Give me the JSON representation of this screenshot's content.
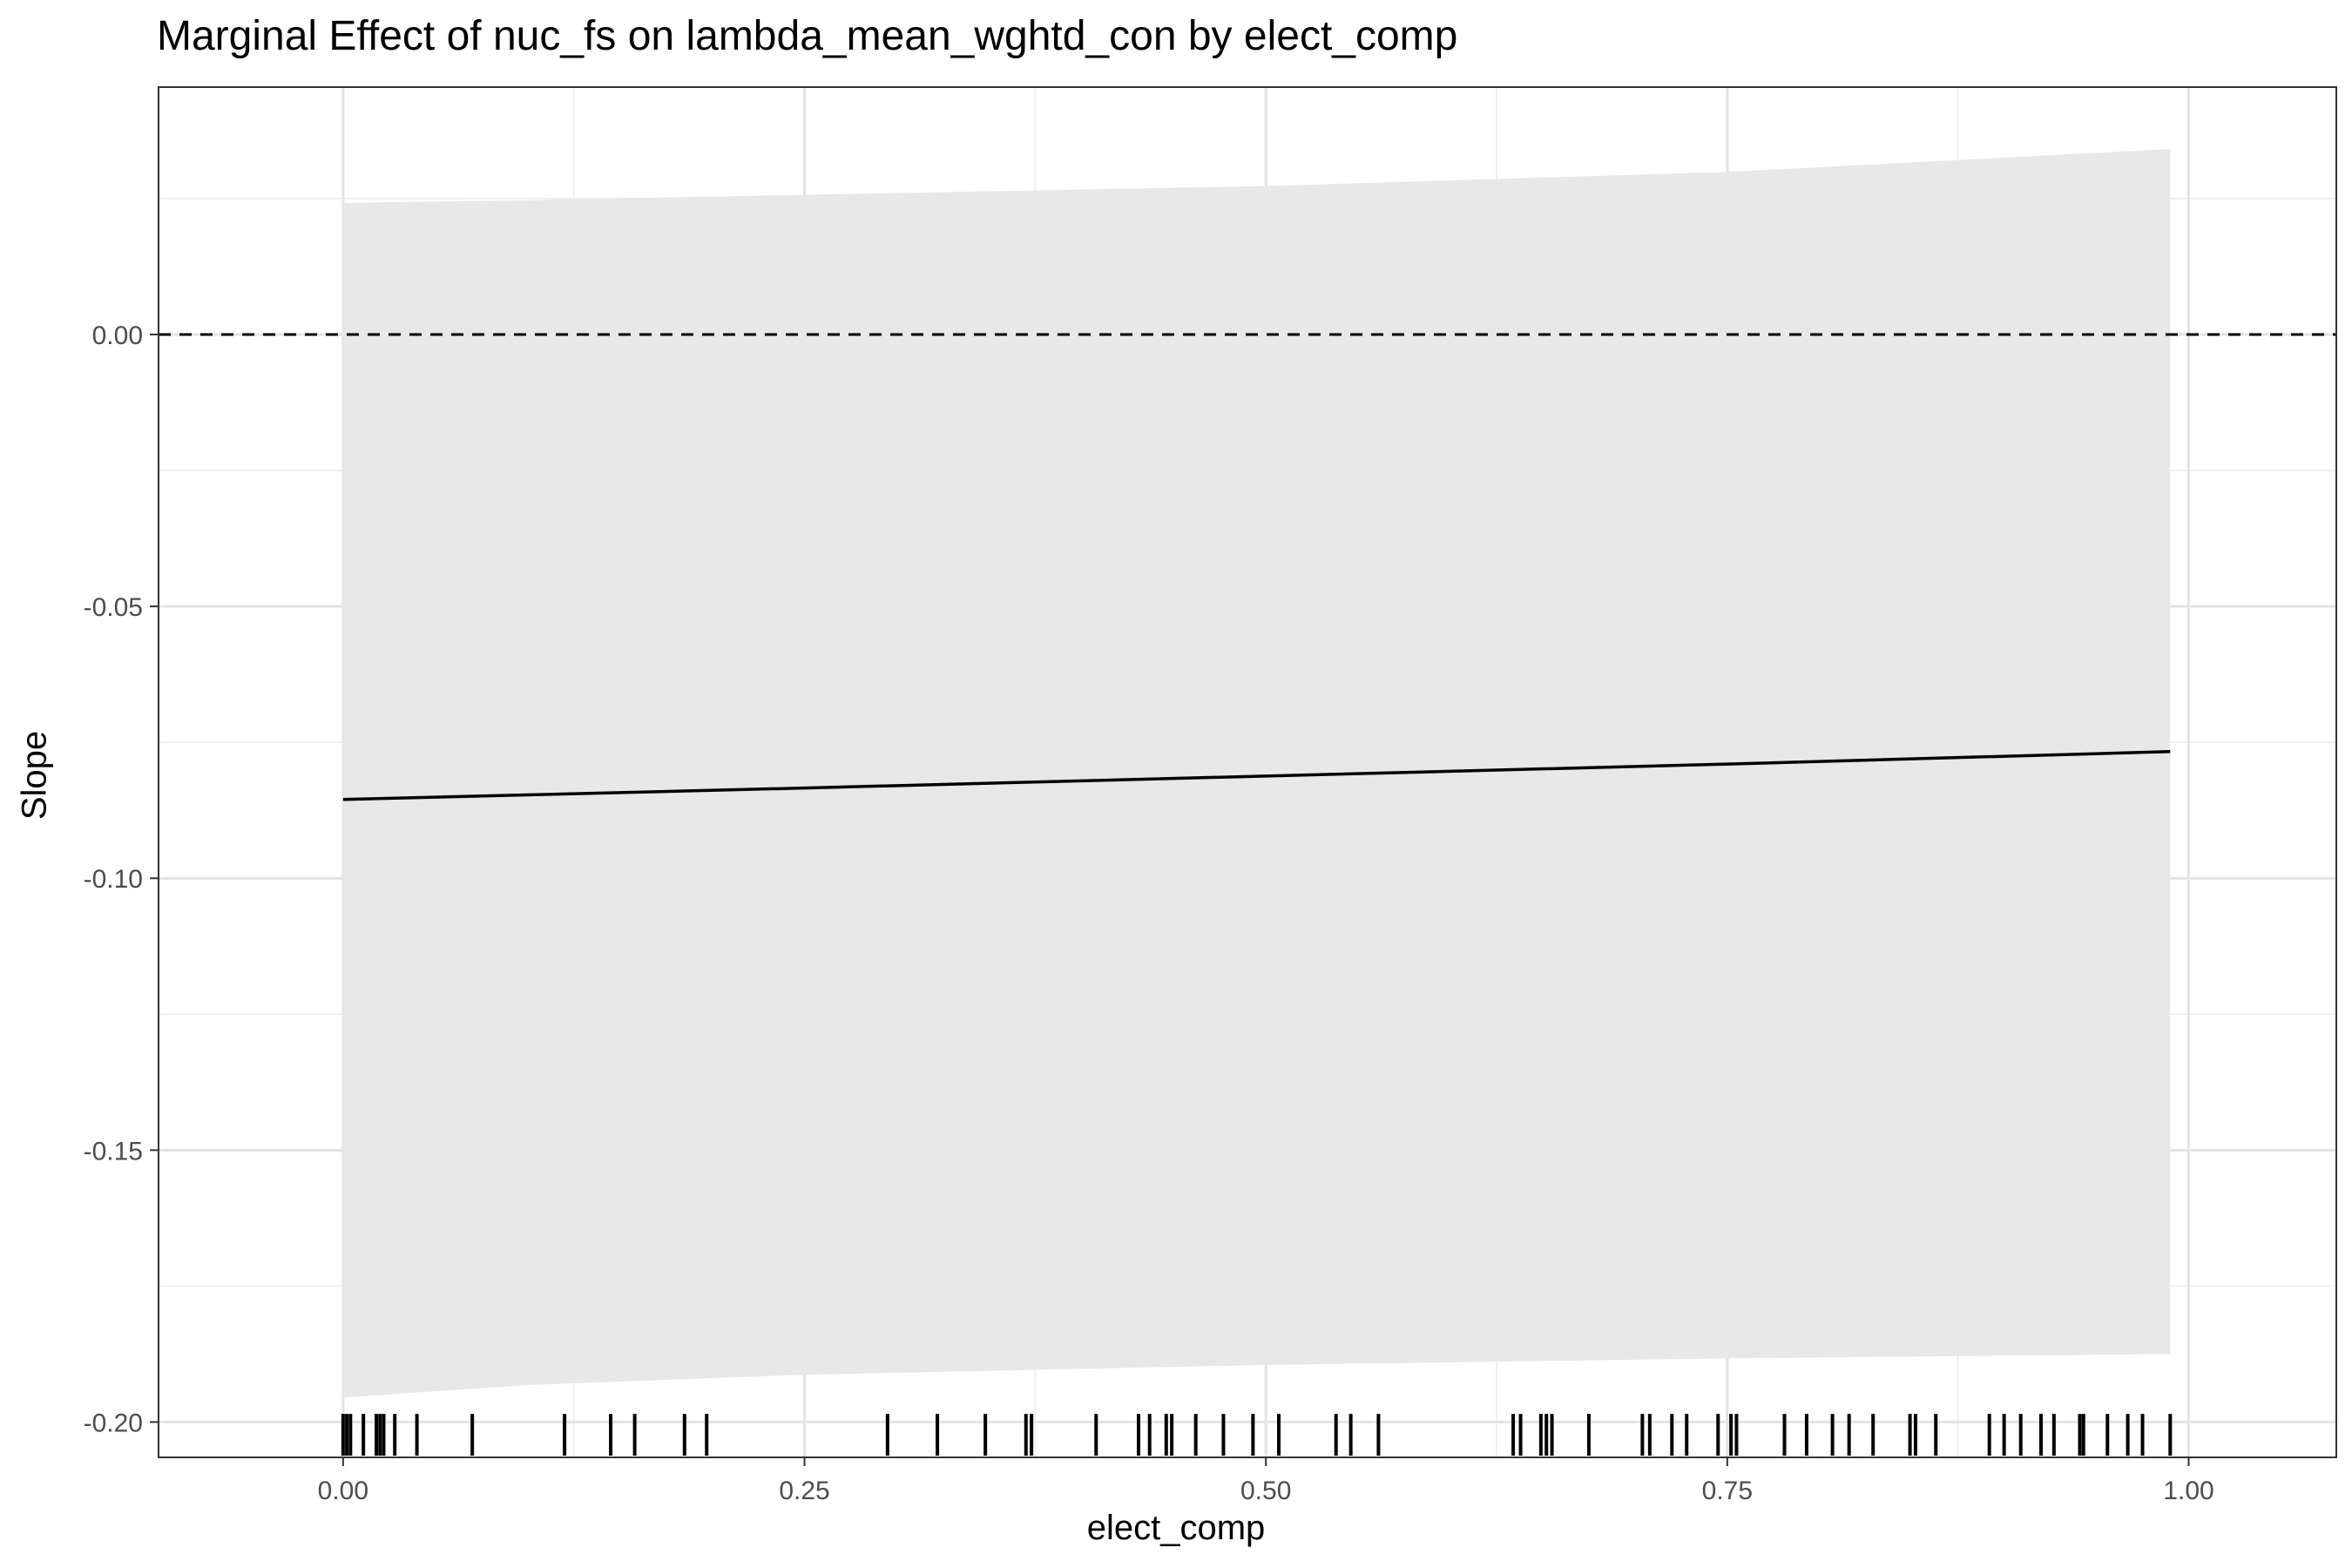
{
  "chart_data": {
    "type": "line",
    "title": "Marginal Effect of nuc_fs on lambda_mean_wghtd_con by elect_comp",
    "xlabel": "elect_comp",
    "ylabel": "Slope",
    "xlim": [
      -0.1,
      1.08
    ],
    "ylim": [
      -0.2065,
      0.0455
    ],
    "x_ticks": [
      0.0,
      0.25,
      0.5,
      0.75,
      1.0
    ],
    "x_tick_labels": [
      "0.00",
      "0.25",
      "0.50",
      "0.75",
      "1.00"
    ],
    "y_ticks": [
      0.0,
      -0.05,
      -0.1,
      -0.15,
      -0.2
    ],
    "y_tick_labels": [
      "0.00",
      "-0.05",
      "-0.10",
      "-0.15",
      "-0.20"
    ],
    "grid": true,
    "series": [
      {
        "x": [
          0.0,
          0.25,
          0.5,
          0.75,
          0.99
        ],
        "y": [
          -0.0855,
          -0.0834,
          -0.0812,
          -0.079,
          -0.0767
        ]
      }
    ],
    "confidence_band": {
      "x": [
        0.0,
        0.1,
        0.25,
        0.5,
        0.75,
        0.99
      ],
      "lower": [
        -0.1955,
        -0.1932,
        -0.1913,
        -0.1895,
        -0.1883,
        -0.1875
      ],
      "upper": [
        0.0242,
        0.0247,
        0.0257,
        0.0273,
        0.0299,
        0.0341
      ]
    },
    "reference_line": {
      "y": 0.0,
      "style": "dashed"
    },
    "rug_x": [
      0.0,
      0.002,
      0.004,
      0.011,
      0.018,
      0.02,
      0.022,
      0.028,
      0.04,
      0.07,
      0.12,
      0.145,
      0.158,
      0.185,
      0.197,
      0.295,
      0.322,
      0.348,
      0.37,
      0.373,
      0.408,
      0.431,
      0.437,
      0.446,
      0.449,
      0.462,
      0.477,
      0.493,
      0.507,
      0.538,
      0.546,
      0.561,
      0.634,
      0.638,
      0.649,
      0.652,
      0.655,
      0.675,
      0.704,
      0.708,
      0.72,
      0.728,
      0.745,
      0.752,
      0.755,
      0.781,
      0.793,
      0.807,
      0.816,
      0.829,
      0.849,
      0.852,
      0.863,
      0.892,
      0.9,
      0.909,
      0.92,
      0.927,
      0.941,
      0.943,
      0.956,
      0.967,
      0.975,
      0.99
    ]
  },
  "colors": {
    "band": "#e8e8e8",
    "line": "#000000",
    "grid_major": "#e3e3e3",
    "grid_minor": "#efefef",
    "panel_border": "#333333",
    "tick_text": "#4d4d4d"
  }
}
